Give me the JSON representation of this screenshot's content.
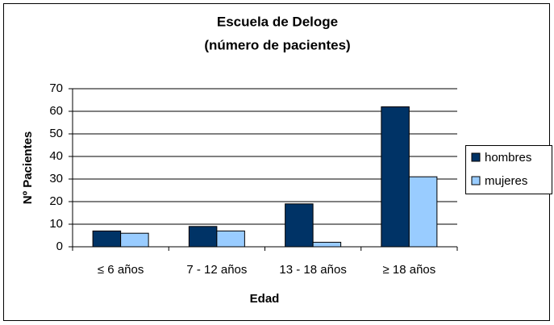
{
  "chart_data": {
    "type": "bar",
    "title": "Escuela de Deloge",
    "subtitle": "(número de pacientes)",
    "x_label": "Edad",
    "y_label": "Nº Pacientes",
    "categories": [
      "≤ 6 años",
      "7 - 12 años",
      "13 - 18 años",
      "≥ 18 años"
    ],
    "series": [
      {
        "name": "hombres",
        "color": "#003366",
        "values": [
          7,
          9,
          19,
          62
        ]
      },
      {
        "name": "mujeres",
        "color": "#99ccff",
        "values": [
          6,
          7,
          2,
          31
        ]
      }
    ],
    "ylim": [
      0,
      70
    ],
    "yticks": [
      0,
      10,
      20,
      30,
      40,
      50,
      60,
      70
    ],
    "grid": true,
    "legend": "right"
  }
}
